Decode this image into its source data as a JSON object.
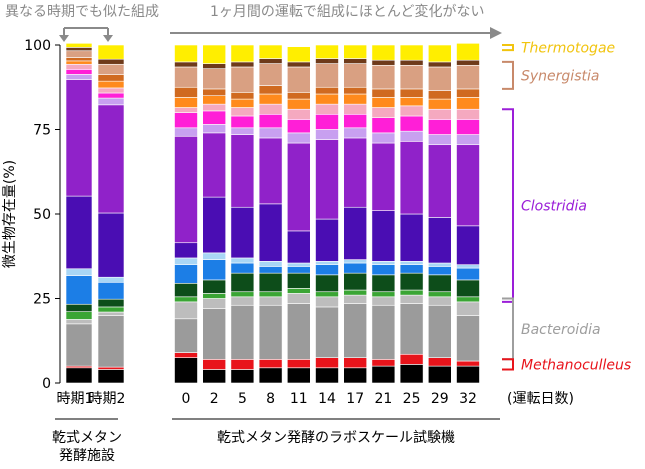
{
  "chart_data": {
    "type": "bar",
    "stacked": true,
    "ylabel": "微生物存在量(%)",
    "ylim": [
      0,
      100
    ],
    "yticks": [
      0,
      25,
      50,
      75,
      100
    ],
    "legend_placement": "right, bracketed groups",
    "header_left": "異なる時期でも似た組成",
    "header_right": "1ヶ月間の運転で組成にほとんど変化がない",
    "x_unit_label": "(運転日数)",
    "group_labels": [
      "乾式メタン\n発酵施設",
      "乾式メタン発酵のラボスケール試験機"
    ],
    "categories_facility": [
      "時期1",
      "時期2"
    ],
    "categories_lab": [
      "0",
      "2",
      "5",
      "8",
      "11",
      "14",
      "17",
      "21",
      "25",
      "29",
      "32"
    ],
    "colors": [
      "#000000",
      "#e8141b",
      "#9b9b9b",
      "#bdbdbd",
      "#3aa534",
      "#0d4d1a",
      "#1c7ee6",
      "#a9d6f5",
      "#4a0db3",
      "#9022c9",
      "#c8a0f0",
      "#ff1fd7",
      "#f5a9c0",
      "#ff8a1c",
      "#d06a20",
      "#d9a082",
      "#6e3a1a",
      "#ffee00"
    ],
    "facility_stacks": [
      [
        4.5,
        0.5,
        12.5,
        1.3,
        2.3,
        2.2,
        8.5,
        2.0,
        21.5,
        34.5,
        1.5,
        1.5,
        1.5,
        1.0,
        1.0,
        2.0,
        1.0,
        1.2
      ],
      [
        4.0,
        0.7,
        15.3,
        1.0,
        1.5,
        2.3,
        5.0,
        1.5,
        19.0,
        32.0,
        2.0,
        1.5,
        1.5,
        2.0,
        2.0,
        3.0,
        1.5,
        4.2
      ]
    ],
    "lab_stacks": [
      [
        7.5,
        1.5,
        10.0,
        5.0,
        1.5,
        4.0,
        5.5,
        2.0,
        4.5,
        31.5,
        2.5,
        4.5,
        1.5,
        3.0,
        3.0,
        6.0,
        1.5,
        5.0
      ],
      [
        4.0,
        3.0,
        15.0,
        3.0,
        1.5,
        4.0,
        6.0,
        2.0,
        16.5,
        19.0,
        2.5,
        4.0,
        2.0,
        2.5,
        2.0,
        6.0,
        1.5,
        5.5
      ],
      [
        4.0,
        3.0,
        16.0,
        2.5,
        1.5,
        5.5,
        3.0,
        1.5,
        15.0,
        21.5,
        2.0,
        3.5,
        2.5,
        2.5,
        2.0,
        7.5,
        1.5,
        5.0
      ],
      [
        4.5,
        2.5,
        16.0,
        2.5,
        1.5,
        5.5,
        2.0,
        1.5,
        17.0,
        19.5,
        3.0,
        4.0,
        3.0,
        3.0,
        2.5,
        6.5,
        1.5,
        4.0
      ],
      [
        4.5,
        2.5,
        16.5,
        3.0,
        1.5,
        4.5,
        2.0,
        1.0,
        9.5,
        26.0,
        3.0,
        4.0,
        3.0,
        3.0,
        2.0,
        7.5,
        1.5,
        4.5
      ],
      [
        4.5,
        3.0,
        15.0,
        3.0,
        1.5,
        5.0,
        3.0,
        1.0,
        12.5,
        23.5,
        3.0,
        4.5,
        3.0,
        3.0,
        2.0,
        7.0,
        1.5,
        4.0
      ],
      [
        4.5,
        3.0,
        16.0,
        2.5,
        1.5,
        5.0,
        3.0,
        1.0,
        15.5,
        20.5,
        3.0,
        4.0,
        3.0,
        3.0,
        2.0,
        7.0,
        1.5,
        4.0
      ],
      [
        5.0,
        2.0,
        16.0,
        2.5,
        1.5,
        5.0,
        3.0,
        1.0,
        15.0,
        20.0,
        3.0,
        4.5,
        3.0,
        3.0,
        2.5,
        7.0,
        1.5,
        4.5
      ],
      [
        5.5,
        3.0,
        15.0,
        2.5,
        1.5,
        5.0,
        2.5,
        1.0,
        14.0,
        21.5,
        3.0,
        4.5,
        3.0,
        2.5,
        2.5,
        7.0,
        1.5,
        4.5
      ],
      [
        5.0,
        2.5,
        15.5,
        2.5,
        1.5,
        5.0,
        2.5,
        1.0,
        13.5,
        21.5,
        3.0,
        4.5,
        3.0,
        3.0,
        2.5,
        7.0,
        1.5,
        5.0
      ],
      [
        5.0,
        1.5,
        13.5,
        4.0,
        1.5,
        5.0,
        3.5,
        1.0,
        11.5,
        24.0,
        3.0,
        4.5,
        3.0,
        3.5,
        2.5,
        7.0,
        1.5,
        5.0
      ]
    ],
    "annotations": [
      {
        "name": "Thermotogae",
        "from": 98.5,
        "to": 100,
        "color": "#f1c40f"
      },
      {
        "name": "Synergistia",
        "from": 87,
        "to": 95,
        "color": "#c8896a"
      },
      {
        "name": "Clostridia",
        "from": 24,
        "to": 81,
        "color": "#9b1ed8"
      },
      {
        "name": "Bacteroidia",
        "from": 7,
        "to": 25,
        "color": "#9e9e9e"
      },
      {
        "name": "Methanoculleus",
        "from": 4,
        "to": 7,
        "color": "#e8141b"
      }
    ]
  }
}
